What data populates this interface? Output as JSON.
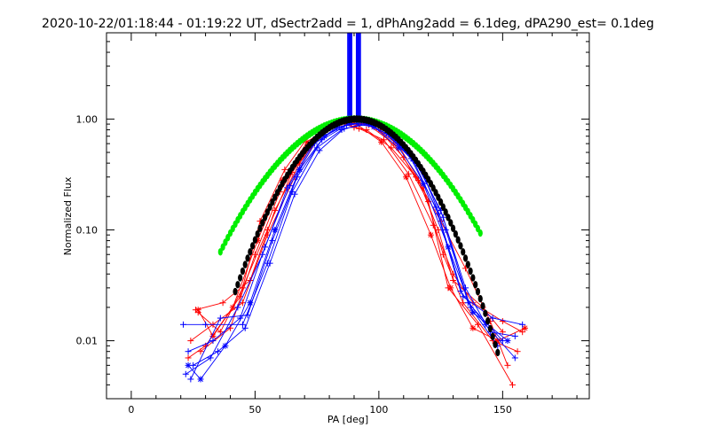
{
  "chart_data": {
    "type": "line",
    "title": "2020-10-22/01:18:44 - 01:19:22 UT, dSectr2add = 1, dPhAng2add = 6.1deg, dPA290_est=  0.1deg",
    "xlabel": "PA [deg]",
    "ylabel": "Normalized Flux",
    "xlim": [
      -10,
      185
    ],
    "ylim": [
      0.003,
      6
    ],
    "y_scale": "log",
    "x_ticks": [
      0,
      50,
      100,
      150
    ],
    "x_tick_labels": [
      "0",
      "50",
      "100",
      "150"
    ],
    "y_ticks": [
      1.0,
      0.1,
      0.01
    ],
    "y_tick_labels": [
      "1.00",
      "0.10",
      "0.01"
    ],
    "grid": false,
    "colors": {
      "red": "#ff0000",
      "blue": "#0000ff",
      "green": "#00ee00",
      "black": "#000000"
    },
    "vertical_lines": {
      "color": "#0000ff",
      "x": [
        87.5,
        88.0,
        88.5,
        89.0,
        91.0,
        91.5,
        92.0,
        92.5
      ],
      "y_from": 1.05,
      "y_to": 6
    },
    "series": [
      {
        "color": "#ff0000",
        "marker": "plus",
        "x": [
          27,
          36,
          45,
          55,
          65,
          75,
          85,
          90,
          95,
          105,
          115,
          125,
          135,
          145,
          152
        ],
        "y": [
          0.018,
          0.012,
          0.03,
          0.1,
          0.33,
          0.68,
          0.92,
          0.84,
          0.8,
          0.55,
          0.3,
          0.12,
          0.045,
          0.015,
          0.006
        ]
      },
      {
        "color": "#ff0000",
        "marker": "plus",
        "x": [
          24,
          33,
          45,
          55,
          66,
          76,
          86,
          96,
          106,
          116,
          124,
          130,
          142,
          150
        ],
        "y": [
          0.01,
          0.014,
          0.022,
          0.09,
          0.3,
          0.7,
          0.95,
          0.88,
          0.6,
          0.28,
          0.1,
          0.035,
          0.02,
          0.012
        ]
      },
      {
        "color": "#ff0000",
        "marker": "plus",
        "x": [
          23,
          30,
          44,
          52,
          62,
          72,
          84,
          92,
          102,
          112,
          122,
          130,
          138,
          150,
          158
        ],
        "y": [
          0.007,
          0.009,
          0.025,
          0.12,
          0.35,
          0.72,
          0.96,
          0.82,
          0.65,
          0.32,
          0.11,
          0.04,
          0.022,
          0.015,
          0.012
        ]
      },
      {
        "color": "#ff0000",
        "marker": "plus",
        "x": [
          26,
          37,
          48,
          58,
          68,
          78,
          88,
          98,
          108,
          118,
          126,
          134,
          146,
          156
        ],
        "y": [
          0.019,
          0.022,
          0.035,
          0.15,
          0.4,
          0.78,
          0.98,
          0.86,
          0.58,
          0.24,
          0.06,
          0.022,
          0.01,
          0.008
        ]
      },
      {
        "color": "#ff0000",
        "marker": "plus",
        "x": [
          28,
          40,
          50,
          60,
          70,
          80,
          90,
          100,
          110,
          120,
          128,
          140,
          154
        ],
        "y": [
          0.008,
          0.013,
          0.06,
          0.22,
          0.5,
          0.85,
          0.98,
          0.8,
          0.45,
          0.18,
          0.03,
          0.014,
          0.004
        ]
      },
      {
        "color": "#ff0000",
        "marker": "asterisk",
        "x": [
          27,
          33,
          41,
          51,
          61,
          71,
          81,
          91,
          101,
          111,
          121,
          129,
          138,
          148,
          159
        ],
        "y": [
          0.019,
          0.011,
          0.02,
          0.08,
          0.28,
          0.62,
          0.9,
          0.9,
          0.62,
          0.3,
          0.09,
          0.03,
          0.013,
          0.01,
          0.013
        ]
      },
      {
        "color": "#0000ff",
        "marker": "plus",
        "x": [
          21,
          30,
          45,
          55,
          65,
          75,
          85,
          95,
          105,
          115,
          125,
          135,
          145,
          155
        ],
        "y": [
          0.014,
          0.014,
          0.014,
          0.05,
          0.22,
          0.55,
          0.8,
          0.92,
          0.7,
          0.4,
          0.15,
          0.03,
          0.012,
          0.011
        ]
      },
      {
        "color": "#0000ff",
        "marker": "plus",
        "x": [
          23,
          33,
          44,
          54,
          64,
          74,
          84,
          94,
          104,
          114,
          124,
          134,
          146,
          158
        ],
        "y": [
          0.008,
          0.01,
          0.016,
          0.07,
          0.25,
          0.6,
          0.85,
          0.93,
          0.72,
          0.42,
          0.14,
          0.025,
          0.016,
          0.014
        ]
      },
      {
        "color": "#0000ff",
        "marker": "plus",
        "x": [
          25,
          35,
          46,
          56,
          66,
          76,
          86,
          96,
          106,
          116,
          126,
          136,
          150
        ],
        "y": [
          0.006,
          0.008,
          0.013,
          0.05,
          0.21,
          0.52,
          0.82,
          0.9,
          0.68,
          0.38,
          0.13,
          0.022,
          0.01
        ]
      },
      {
        "color": "#0000ff",
        "marker": "plus",
        "x": [
          22,
          32,
          43,
          53,
          63,
          73,
          83,
          93,
          103,
          113,
          123,
          133,
          143,
          155
        ],
        "y": [
          0.005,
          0.007,
          0.02,
          0.06,
          0.24,
          0.58,
          0.84,
          0.94,
          0.74,
          0.44,
          0.16,
          0.028,
          0.014,
          0.007
        ]
      },
      {
        "color": "#0000ff",
        "marker": "plus",
        "x": [
          24,
          36,
          47,
          57,
          67,
          77,
          87,
          97,
          107,
          117,
          127,
          137,
          148
        ],
        "y": [
          0.0045,
          0.016,
          0.017,
          0.08,
          0.3,
          0.65,
          0.88,
          0.95,
          0.7,
          0.36,
          0.1,
          0.02,
          0.009
        ]
      },
      {
        "color": "#0000ff",
        "marker": "asterisk",
        "x": [
          23,
          28,
          38,
          48,
          58,
          68,
          78,
          88,
          98,
          108,
          118,
          128,
          138,
          152
        ],
        "y": [
          0.006,
          0.0045,
          0.009,
          0.022,
          0.1,
          0.35,
          0.7,
          0.92,
          0.85,
          0.55,
          0.26,
          0.07,
          0.018,
          0.01
        ]
      }
    ],
    "fits": [
      {
        "color": "#00ee00",
        "style": "thick-dotted",
        "center": 90.5,
        "sigma": 23.2,
        "amplitude": 1.0,
        "x_from": 36,
        "x_to": 141
      },
      {
        "color": "#000000",
        "style": "thick-dotted",
        "center": 91.0,
        "sigma": 18.3,
        "amplitude": 1.0,
        "x_from": 42,
        "x_to": 148
      }
    ]
  }
}
